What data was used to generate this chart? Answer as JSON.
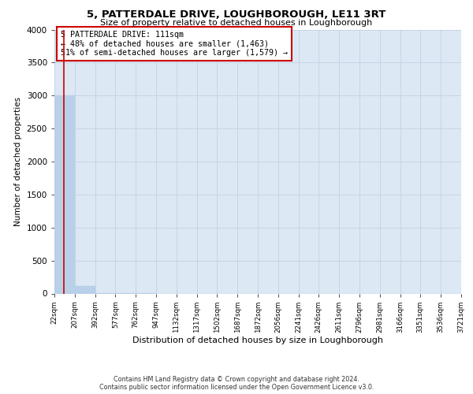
{
  "title": "5, PATTERDALE DRIVE, LOUGHBOROUGH, LE11 3RT",
  "subtitle": "Size of property relative to detached houses in Loughborough",
  "xlabel": "Distribution of detached houses by size in Loughborough",
  "ylabel": "Number of detached properties",
  "bin_edges": [
    22,
    207,
    392,
    577,
    762,
    947,
    1132,
    1317,
    1502,
    1687,
    1872,
    2056,
    2241,
    2426,
    2611,
    2796,
    2981,
    3166,
    3351,
    3536,
    3721
  ],
  "bar_heights": [
    3000,
    110,
    3,
    1,
    1,
    0,
    0,
    0,
    0,
    0,
    0,
    0,
    0,
    0,
    0,
    0,
    0,
    0,
    0,
    0
  ],
  "bar_color": "#b8d0e8",
  "bar_edgecolor": "#b8d0e8",
  "subject_size": 111,
  "red_line_color": "#cc0000",
  "annotation_line1": "5 PATTERDALE DRIVE: 111sqm",
  "annotation_line2": "← 48% of detached houses are smaller (1,463)",
  "annotation_line3": "51% of semi-detached houses are larger (1,579) →",
  "annotation_box_color": "#ffffff",
  "annotation_border_color": "#cc0000",
  "ylim": [
    0,
    4000
  ],
  "yticks": [
    0,
    500,
    1000,
    1500,
    2000,
    2500,
    3000,
    3500,
    4000
  ],
  "grid_color": "#c8d4e4",
  "background_color": "#dce8f4",
  "title_fontsize": 9.5,
  "subtitle_fontsize": 8,
  "footer_line1": "Contains HM Land Registry data © Crown copyright and database right 2024.",
  "footer_line2": "Contains public sector information licensed under the Open Government Licence v3.0."
}
